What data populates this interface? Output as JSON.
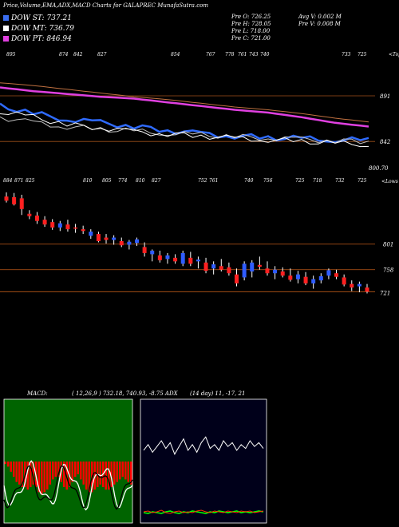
{
  "header": {
    "title": "Price,Volume,EMA,ADX,MACD Charts for GALAPREC MunafaSutra.com",
    "ema_st": "DOW ST: 737.21",
    "ema_mt": "DOW MT: 736.79",
    "ema_pt": "DOW PT: 846.94",
    "ema_st_color": "#3a6df0",
    "ema_mt_color": "#ffffff",
    "ema_pt_color": "#e040e0",
    "prev_open": "Pre  O: 726.25",
    "prev_high": "Pre  H: 728.05",
    "prev_low": "Pre  L: 718.00",
    "prev_close": "Pre  C: 721.00",
    "avg_volume": "Avg V: 0.002  M",
    "prev_volume": "Pre  V: 0.008 M"
  },
  "indicators": {
    "macd_label": "MACD:",
    "macd_params": "( 12,26,9 ) 732.18, 740.93, -8.75 ADX",
    "adx_params": "(14  day) 11, -17,  21"
  },
  "chart_data": [
    {
      "type": "line",
      "name": "ema-panel",
      "series": [
        {
          "values": [
            900,
            896,
            893,
            890,
            888,
            884,
            880,
            876,
            873,
            868,
            862,
            858
          ]
        },
        {
          "values": [
            905,
            902,
            898,
            894,
            890,
            887,
            883,
            879,
            876,
            872,
            867,
            863
          ]
        },
        {
          "values": [
            880,
            872,
            866,
            862,
            858,
            854,
            850,
            848,
            846,
            845,
            844,
            843
          ]
        },
        {
          "values": [
            868,
            862,
            858,
            855,
            853,
            851,
            849,
            847,
            846,
            844,
            843,
            842
          ]
        },
        {
          "values": [
            874,
            868,
            860,
            857,
            852,
            850,
            848,
            845,
            844,
            842,
            840,
            839
          ]
        }
      ],
      "price_labels": [
        "891",
        "842",
        "800.70"
      ],
      "top_labels": [
        "895",
        "874",
        "842",
        "827",
        "854",
        "767",
        "778",
        "761",
        "743",
        "740",
        "733",
        "725"
      ],
      "corner_label": "<Tops",
      "colors": {
        "pt": "#e040e0",
        "st": "#2f6bff",
        "mt": "#c0c0c0"
      }
    },
    {
      "type": "bar",
      "name": "candles",
      "candles": [
        {
          "o": 881,
          "h": 888,
          "l": 871,
          "c": 874
        },
        {
          "o": 880,
          "h": 887,
          "l": 866,
          "c": 868
        },
        {
          "o": 878,
          "h": 884,
          "l": 850,
          "c": 860
        },
        {
          "o": 852,
          "h": 858,
          "l": 843,
          "c": 848
        },
        {
          "o": 849,
          "h": 855,
          "l": 835,
          "c": 840
        },
        {
          "o": 842,
          "h": 848,
          "l": 830,
          "c": 834
        },
        {
          "o": 838,
          "h": 843,
          "l": 825,
          "c": 829
        },
        {
          "o": 829,
          "h": 840,
          "l": 823,
          "c": 836
        },
        {
          "o": 834,
          "h": 842,
          "l": 822,
          "c": 826
        },
        {
          "o": 829,
          "h": 835,
          "l": 820,
          "c": 828
        },
        {
          "o": 826,
          "h": 832,
          "l": 818,
          "c": 823
        },
        {
          "o": 815,
          "h": 826,
          "l": 810,
          "c": 822
        },
        {
          "o": 818,
          "h": 822,
          "l": 804,
          "c": 806
        },
        {
          "o": 812,
          "h": 818,
          "l": 802,
          "c": 808
        },
        {
          "o": 808,
          "h": 816,
          "l": 800,
          "c": 812
        },
        {
          "o": 806,
          "h": 812,
          "l": 796,
          "c": 799
        },
        {
          "o": 800,
          "h": 808,
          "l": 792,
          "c": 805
        },
        {
          "o": 803,
          "h": 812,
          "l": 798,
          "c": 809
        },
        {
          "o": 796,
          "h": 804,
          "l": 780,
          "c": 786
        },
        {
          "o": 784,
          "h": 792,
          "l": 772,
          "c": 790
        },
        {
          "o": 782,
          "h": 790,
          "l": 770,
          "c": 774
        },
        {
          "o": 776,
          "h": 786,
          "l": 768,
          "c": 782
        },
        {
          "o": 778,
          "h": 784,
          "l": 768,
          "c": 772
        },
        {
          "o": 768,
          "h": 790,
          "l": 764,
          "c": 786
        },
        {
          "o": 778,
          "h": 788,
          "l": 764,
          "c": 768
        },
        {
          "o": 772,
          "h": 780,
          "l": 760,
          "c": 775
        },
        {
          "o": 770,
          "h": 778,
          "l": 752,
          "c": 756
        },
        {
          "o": 760,
          "h": 772,
          "l": 750,
          "c": 767
        },
        {
          "o": 764,
          "h": 776,
          "l": 755,
          "c": 758
        },
        {
          "o": 762,
          "h": 770,
          "l": 748,
          "c": 752
        },
        {
          "o": 750,
          "h": 760,
          "l": 730,
          "c": 735
        },
        {
          "o": 745,
          "h": 772,
          "l": 740,
          "c": 768
        },
        {
          "o": 755,
          "h": 774,
          "l": 745,
          "c": 770
        },
        {
          "o": 766,
          "h": 780,
          "l": 758,
          "c": 763
        },
        {
          "o": 760,
          "h": 772,
          "l": 748,
          "c": 752
        },
        {
          "o": 752,
          "h": 764,
          "l": 742,
          "c": 758
        },
        {
          "o": 755,
          "h": 762,
          "l": 745,
          "c": 748
        },
        {
          "o": 748,
          "h": 760,
          "l": 738,
          "c": 741
        },
        {
          "o": 742,
          "h": 756,
          "l": 735,
          "c": 750
        },
        {
          "o": 746,
          "h": 754,
          "l": 732,
          "c": 735
        },
        {
          "o": 735,
          "h": 748,
          "l": 726,
          "c": 742
        },
        {
          "o": 740,
          "h": 752,
          "l": 735,
          "c": 747
        },
        {
          "o": 748,
          "h": 760,
          "l": 742,
          "c": 757
        },
        {
          "o": 752,
          "h": 758,
          "l": 742,
          "c": 746
        },
        {
          "o": 745,
          "h": 750,
          "l": 730,
          "c": 733
        },
        {
          "o": 734,
          "h": 740,
          "l": 722,
          "c": 728
        },
        {
          "o": 730,
          "h": 738,
          "l": 720,
          "c": 734
        },
        {
          "o": 728,
          "h": 734,
          "l": 718,
          "c": 721
        }
      ],
      "h_levels": [
        801,
        758,
        721
      ],
      "top_labels": [
        "884",
        "871",
        "825",
        "810",
        "805",
        "774",
        "810",
        "827",
        "752",
        "761",
        "740",
        "756",
        "725",
        "718",
        "732",
        "725"
      ],
      "corner_label": "<Lows",
      "colors": {
        "up": "#2f5cff",
        "down": "#ff2020",
        "wick": "#ffffff",
        "level": "#c05a18"
      }
    },
    {
      "type": "bar",
      "name": "macd",
      "values": [
        -1,
        -2,
        -4,
        -6,
        -8,
        -9,
        -10,
        -10,
        -11,
        -10,
        -9,
        -10,
        -12,
        -13,
        -12,
        -11,
        -9,
        -7,
        -6,
        -6,
        -8,
        -10,
        -11,
        -10,
        -8,
        -6,
        -5,
        -7,
        -9,
        -11,
        -12,
        -12,
        -11,
        -10,
        -9,
        -10,
        -11,
        -11,
        -10,
        -9,
        -8,
        -7,
        -6,
        -7,
        -8,
        -9
      ],
      "colors": {
        "bg": "#006400",
        "bar": "#ff0000",
        "line": "#ffffff"
      }
    },
    {
      "type": "line",
      "name": "adx",
      "series": [
        {
          "values": [
            30,
            36,
            28,
            34,
            40,
            32,
            38,
            26,
            34,
            42,
            30,
            36,
            28,
            38,
            44,
            32,
            36,
            30,
            40,
            34,
            38,
            30,
            36,
            32,
            40,
            34,
            38,
            32
          ]
        },
        {
          "values": [
            8,
            7,
            9,
            8,
            7,
            9,
            10,
            8,
            7,
            9,
            8,
            10,
            9,
            8,
            7,
            9,
            8,
            10,
            9,
            8,
            9,
            10,
            8,
            9,
            8,
            9,
            10,
            9
          ]
        },
        {
          "values": [
            9,
            10,
            8,
            9,
            11,
            8,
            7,
            9,
            10,
            8,
            9,
            8,
            10,
            11,
            9,
            8,
            10,
            9,
            8,
            10,
            9,
            8,
            10,
            9,
            10,
            8,
            9,
            10
          ]
        }
      ],
      "colors": {
        "adx": "#ffffff",
        "pos": "#00ff00",
        "neg": "#ff3300",
        "bg": "#00001a"
      }
    }
  ]
}
